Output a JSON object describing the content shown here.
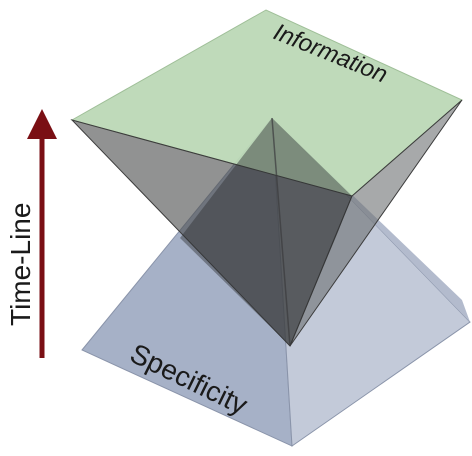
{
  "diagram": {
    "top_label": "Information",
    "bottom_label": "Specificity",
    "axis_label": "Time-Line",
    "colors": {
      "top_pyramid_face": "#b9d4b3",
      "bottom_pyramid_face": "#9aa4b8",
      "arrow": "#7a0f14"
    }
  }
}
